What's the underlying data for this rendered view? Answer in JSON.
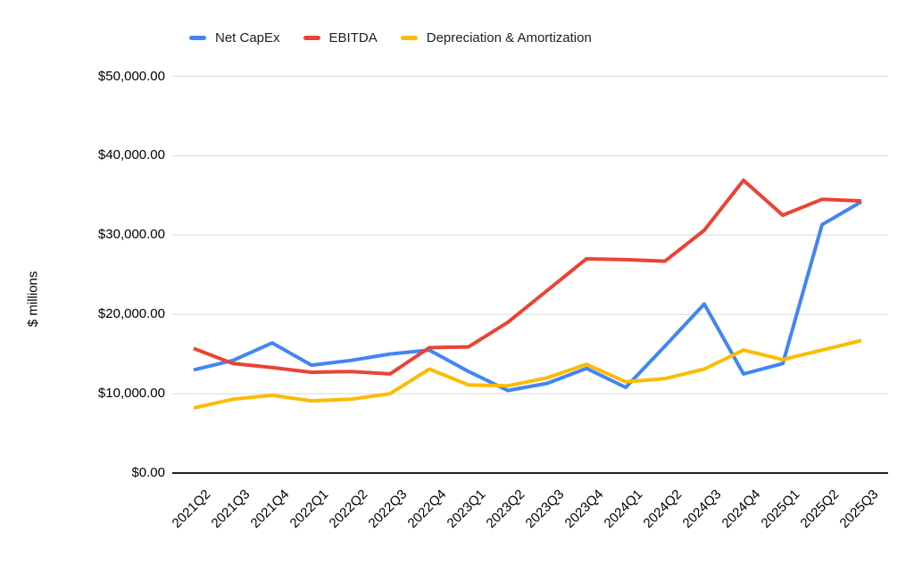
{
  "chart_data": {
    "type": "line",
    "title": "",
    "xlabel": "",
    "ylabel": "$ millions",
    "ylim": [
      0,
      50000
    ],
    "grid": true,
    "legend_position": "top",
    "y_ticks": [
      {
        "value": 0,
        "label": "$0.00"
      },
      {
        "value": 10000,
        "label": "$10,000.00"
      },
      {
        "value": 20000,
        "label": "$20,000.00"
      },
      {
        "value": 30000,
        "label": "$30,000.00"
      },
      {
        "value": 40000,
        "label": "$40,000.00"
      },
      {
        "value": 50000,
        "label": "$50,000.00"
      }
    ],
    "categories": [
      "2021Q2",
      "2021Q3",
      "2021Q4",
      "2022Q1",
      "2022Q2",
      "2022Q3",
      "2022Q4",
      "2023Q1",
      "2023Q2",
      "2023Q3",
      "2023Q4",
      "2024Q1",
      "2024Q2",
      "2024Q3",
      "2024Q4",
      "2025Q1",
      "2025Q2",
      "2025Q3"
    ],
    "series": [
      {
        "name": "Net CapEx",
        "color": "#4285F4",
        "values": [
          13000,
          14200,
          16400,
          13600,
          14200,
          15000,
          15500,
          12800,
          10400,
          11300,
          13200,
          10800,
          16000,
          21300,
          12500,
          13800,
          31300,
          34200
        ]
      },
      {
        "name": "EBITDA",
        "color": "#EA4335",
        "values": [
          15700,
          13800,
          13300,
          12700,
          12800,
          12500,
          15800,
          15900,
          19000,
          23000,
          27000,
          26900,
          26700,
          30600,
          36900,
          32500,
          34500,
          34300
        ]
      },
      {
        "name": "Depreciation & Amortization",
        "color": "#FBBC04",
        "values": [
          8200,
          9300,
          9800,
          9100,
          9300,
          10000,
          13100,
          11100,
          11000,
          12000,
          13700,
          11500,
          11900,
          13100,
          15500,
          14300,
          15500,
          16700
        ]
      }
    ],
    "axis_color": "#212121",
    "gridline_color": "#dadada"
  }
}
